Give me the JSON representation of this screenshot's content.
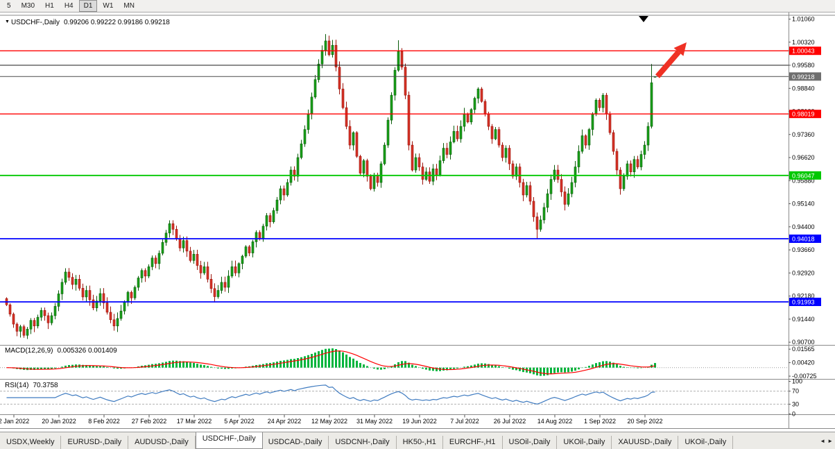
{
  "toolbar": {
    "timeframes": [
      "5",
      "M30",
      "H1",
      "H4",
      "D1",
      "W1",
      "MN"
    ],
    "active": "D1"
  },
  "chart": {
    "title": "USDCHF-,Daily",
    "ohlc_text": "0.99206 0.99222 0.99186 0.99218",
    "price_axis": [
      "1.01060",
      "1.00320",
      "0.99580",
      "0.98840",
      "0.98100",
      "0.97360",
      "0.96620",
      "0.95880",
      "0.95140",
      "0.94400",
      "0.93660",
      "0.92920",
      "0.92180",
      "0.91440",
      "0.90700"
    ],
    "date_axis": [
      "2 Jan 2022",
      "20 Jan 2022",
      "8 Feb 2022",
      "27 Feb 2022",
      "17 Mar 2022",
      "5 Apr 2022",
      "24 Apr 2022",
      "12 May 2022",
      "31 May 2022",
      "19 Jun 2022",
      "7 Jul 2022",
      "26 Jul 2022",
      "14 Aug 2022",
      "1 Sep 2022",
      "20 Sep 2022"
    ],
    "h_lines": [
      {
        "price": 1.00043,
        "label": "1.00043",
        "color": "#FF0000",
        "width": 1.4
      },
      {
        "price": 0.9958,
        "label": "",
        "color": "#1a1a1a",
        "width": 1
      },
      {
        "price": 0.98019,
        "label": "0.98019",
        "color": "#FF0000",
        "width": 1.4
      },
      {
        "price": 0.96047,
        "label": "0.96047",
        "color": "#00C800",
        "width": 1.8
      },
      {
        "price": 0.94018,
        "label": "0.94018",
        "color": "#0000FF",
        "width": 1.8
      },
      {
        "price": 0.91993,
        "label": "0.91993",
        "color": "#0000FF",
        "width": 1.8
      }
    ],
    "bid": {
      "price": 0.99218,
      "label": "0.99218",
      "color": "#6e6e6e"
    }
  },
  "chart_data": {
    "type": "candlestick",
    "symbol": "USDCHF",
    "timeframe": "Daily",
    "ylim": [
      0.90613,
      1.01182
    ],
    "closes": [
      0.919,
      0.916,
      0.9128,
      0.9105,
      0.912,
      0.9092,
      0.9112,
      0.914,
      0.9122,
      0.915,
      0.9172,
      0.9155,
      0.9132,
      0.9155,
      0.9185,
      0.9225,
      0.9262,
      0.9295,
      0.9278,
      0.9255,
      0.9272,
      0.9243,
      0.9215,
      0.9236,
      0.9206,
      0.918,
      0.9202,
      0.9226,
      0.9196,
      0.9166,
      0.9142,
      0.9122,
      0.9146,
      0.917,
      0.92,
      0.923,
      0.9212,
      0.9246,
      0.9276,
      0.93,
      0.9282,
      0.9312,
      0.934,
      0.9322,
      0.9355,
      0.939,
      0.942,
      0.945,
      0.9432,
      0.9402,
      0.9372,
      0.9396,
      0.9362,
      0.9332,
      0.9352,
      0.9316,
      0.9292,
      0.9312,
      0.9272,
      0.9242,
      0.9216,
      0.9236,
      0.9262,
      0.9246,
      0.9282,
      0.9312,
      0.9292,
      0.9322,
      0.9346,
      0.9376,
      0.9356,
      0.9392,
      0.9422,
      0.9402,
      0.9442,
      0.9476,
      0.9456,
      0.9492,
      0.9526,
      0.9562,
      0.9542,
      0.9582,
      0.9622,
      0.9602,
      0.9662,
      0.9706,
      0.9752,
      0.9802,
      0.9856,
      0.9912,
      0.9962,
      1.0006,
      1.0036,
      0.9992,
      1.0022,
      0.9952,
      0.9882,
      0.9822,
      0.9762,
      0.9702,
      0.9742,
      0.9666,
      0.9612,
      0.9652,
      0.9602,
      0.9562,
      0.9606,
      0.9582,
      0.9642,
      0.9702,
      0.9782,
      0.9862,
      0.9942,
      1.0002,
      0.9952,
      0.9862,
      0.9702,
      0.9622,
      0.9662,
      0.9632,
      0.9592,
      0.9616,
      0.9586,
      0.9626,
      0.9606,
      0.9652,
      0.9692,
      0.9672,
      0.9712,
      0.9746,
      0.9722,
      0.9762,
      0.9802,
      0.9776,
      0.9816,
      0.9852,
      0.9882,
      0.9842,
      0.9802,
      0.9762,
      0.9722,
      0.9752,
      0.9702,
      0.9662,
      0.9692,
      0.9642,
      0.9602,
      0.9632,
      0.9582,
      0.9542,
      0.9572,
      0.9522,
      0.9472,
      0.9432,
      0.9462,
      0.9502,
      0.9546,
      0.9592,
      0.9622,
      0.9592,
      0.9552,
      0.9512,
      0.9546,
      0.9582,
      0.9632,
      0.9682,
      0.9732,
      0.9702,
      0.9752,
      0.9802,
      0.9846,
      0.9822,
      0.9862,
      0.9802,
      0.9742,
      0.9682,
      0.9622,
      0.9562,
      0.9602,
      0.9642,
      0.9616,
      0.9656,
      0.9632,
      0.9672,
      0.9702,
      0.9762,
      0.9902,
      0.99218
    ],
    "last_candle": {
      "open": 0.99206,
      "high": 0.99222,
      "low": 0.99186,
      "close": 0.99218
    },
    "wick_overrides": {
      "92": {
        "h": 1.0058
      },
      "113": {
        "h": 1.0038
      },
      "153": {
        "l": 0.9403
      },
      "186": {
        "h": 0.9962
      }
    },
    "indicators": {
      "macd": {
        "label": "MACD(12,26,9)",
        "values_text": "0.005326 0.001409",
        "params": [
          12,
          26,
          9
        ],
        "axis": [
          "0.01565",
          "0.00420",
          "-0.00725"
        ]
      },
      "rsi": {
        "label": "RSI(14)",
        "values_text": "70.3758",
        "period": 14,
        "axis": [
          "100",
          "70",
          "30",
          "0"
        ],
        "levels": [
          70,
          30
        ]
      }
    },
    "colors": {
      "candle_up": "#0a5c0a",
      "candle_up_fill": "#18a018",
      "candle_down": "#9c140c",
      "candle_down_fill": "#d63226",
      "macd_hist": "#00B43C",
      "macd_signal": "#FF0000",
      "rsi_line": "#3F7BC0",
      "arrow": "#EF3124",
      "marker": "#000000"
    }
  },
  "tabbar": {
    "tabs": [
      "USDX,Weekly",
      "EURUSD-,Daily",
      "AUDUSD-,Daily",
      "USDCHF-,Daily",
      "USDCAD-,Daily",
      "USDCNH-,Daily",
      "HK50-,H1",
      "EURCHF-,H1",
      "USOil-,Daily",
      "UKOil-,Daily",
      "XAUUSD-,Daily",
      "UKOil-,Daily"
    ],
    "active_index": 3,
    "scroll_left": "◄",
    "scroll_right": "►"
  }
}
